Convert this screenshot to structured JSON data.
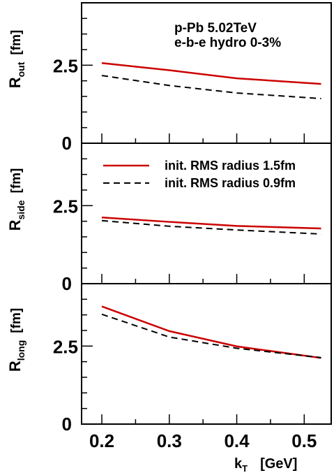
{
  "chart_data": {
    "type": "line",
    "x": [
      0.2,
      0.3,
      0.4,
      0.525
    ],
    "xlabel": {
      "main": "k",
      "sub": "T",
      "unit": "[GeV]"
    },
    "xticks": [
      0.2,
      0.3,
      0.4,
      0.5
    ],
    "xticklabels": [
      "0.2",
      "0.3",
      "0.4",
      "0.5"
    ],
    "xlim": [
      0.17,
      0.54
    ],
    "ylim": [
      0,
      4.5
    ],
    "yticklabels": [
      "0",
      "2.5"
    ],
    "annotation": [
      "p-Pb 5.02TeV",
      "e-b-e hydro 0-3%"
    ],
    "legend": [
      {
        "label": "init. RMS radius 1.5fm",
        "color": "#cc0000",
        "style": "solid"
      },
      {
        "label": "init. RMS radius 0.9fm",
        "color": "#000000",
        "style": "dashed"
      }
    ],
    "panels": [
      {
        "ylabel": {
          "main": "R",
          "sub": "out",
          "unit": "[fm]"
        },
        "series": [
          {
            "name": "init. RMS radius 1.5fm",
            "values": [
              2.57,
              2.34,
              2.08,
              1.9
            ]
          },
          {
            "name": "init. RMS radius 0.9fm",
            "values": [
              2.17,
              1.85,
              1.61,
              1.43
            ]
          }
        ]
      },
      {
        "ylabel": {
          "main": "R",
          "sub": "side",
          "unit": "[fm]"
        },
        "series": [
          {
            "name": "init. RMS radius 1.5fm",
            "values": [
              2.12,
              1.98,
              1.85,
              1.77
            ]
          },
          {
            "name": "init. RMS radius 0.9fm",
            "values": [
              2.02,
              1.84,
              1.72,
              1.59
            ]
          }
        ]
      },
      {
        "ylabel": {
          "main": "R",
          "sub": "long",
          "unit": "[fm]"
        },
        "series": [
          {
            "name": "init. RMS radius 1.5fm",
            "values": [
              3.77,
              2.98,
              2.49,
              2.12
            ]
          },
          {
            "name": "init. RMS radius 0.9fm",
            "values": [
              3.52,
              2.79,
              2.43,
              2.13
            ]
          }
        ]
      }
    ]
  }
}
